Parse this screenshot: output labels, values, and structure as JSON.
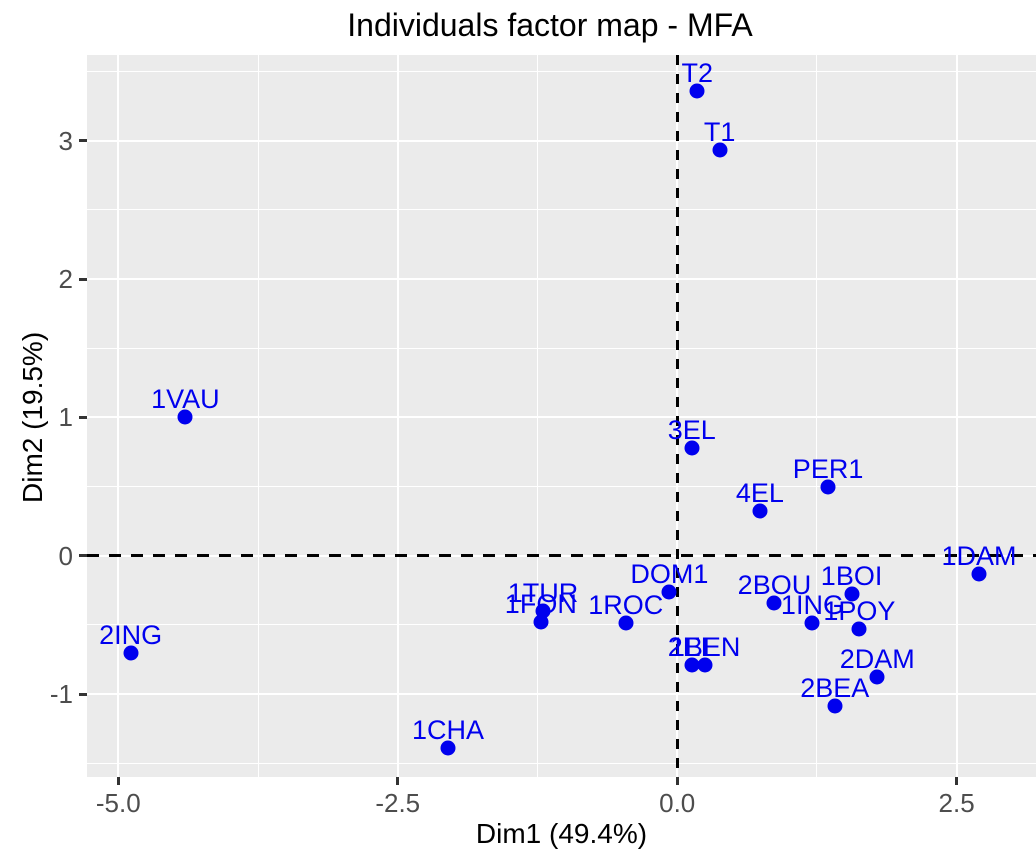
{
  "chart_data": {
    "type": "scatter",
    "title": "Individuals factor map - MFA",
    "xlabel": "Dim1 (49.4%)",
    "ylabel": "Dim2 (19.5%)",
    "xlim": [
      -5.28,
      3.21
    ],
    "ylim": [
      -1.6,
      3.62
    ],
    "x_ticks": {
      "values": [
        -5.0,
        -2.5,
        0.0,
        2.5
      ],
      "labels": [
        "-5.0",
        "-2.5",
        "0.0",
        "2.5"
      ]
    },
    "y_ticks": {
      "values": [
        3,
        2,
        1,
        0,
        -1
      ],
      "labels": [
        "3",
        "2",
        "1",
        "0",
        "-1"
      ]
    },
    "x_minor_gridlines": [
      -3.75,
      -1.25,
      1.25
    ],
    "y_minor_gridlines": [
      3.5,
      2.5,
      1.5,
      0.5,
      -0.5,
      -1.5
    ],
    "reference_lines": [
      {
        "axis": "x",
        "value": 0,
        "style": "dashed",
        "color": "#000000"
      },
      {
        "axis": "y",
        "value": 0,
        "style": "dashed",
        "color": "#000000"
      }
    ],
    "panel_bg": "#EBEBEB",
    "grid_color": "#FFFFFF",
    "point_color": "#0000EE",
    "label_color": "#0000EE",
    "legend": "none",
    "points": [
      {
        "label": "T2",
        "x": 0.18,
        "y": 3.36
      },
      {
        "label": "T1",
        "x": 0.38,
        "y": 2.93
      },
      {
        "label": "1VAU",
        "x": -4.4,
        "y": 1.0
      },
      {
        "label": "3EL",
        "x": 0.13,
        "y": 0.78
      },
      {
        "label": "PER1",
        "x": 1.35,
        "y": 0.5
      },
      {
        "label": "4EL",
        "x": 0.74,
        "y": 0.32
      },
      {
        "label": "1DAM",
        "x": 2.7,
        "y": -0.13
      },
      {
        "label": "DOM1",
        "x": -0.07,
        "y": -0.26
      },
      {
        "label": "1BOI",
        "x": 1.56,
        "y": -0.28
      },
      {
        "label": "2BOU",
        "x": 0.87,
        "y": -0.34
      },
      {
        "label": "1TUR",
        "x": -1.2,
        "y": -0.4
      },
      {
        "label": "1FON",
        "x": -1.22,
        "y": -0.48
      },
      {
        "label": "1ROC",
        "x": -0.46,
        "y": -0.49
      },
      {
        "label": "1ING",
        "x": 1.21,
        "y": -0.49
      },
      {
        "label": "1POY",
        "x": 1.63,
        "y": -0.53
      },
      {
        "label": "2ING",
        "x": -4.89,
        "y": -0.7
      },
      {
        "label": "2EL",
        "x": 0.13,
        "y": -0.79
      },
      {
        "label": "1BEN",
        "x": 0.25,
        "y": -0.79
      },
      {
        "label": "2DAM",
        "x": 1.79,
        "y": -0.88
      },
      {
        "label": "2BEA",
        "x": 1.41,
        "y": -1.09
      },
      {
        "label": "1CHA",
        "x": -2.05,
        "y": -1.39
      }
    ]
  }
}
